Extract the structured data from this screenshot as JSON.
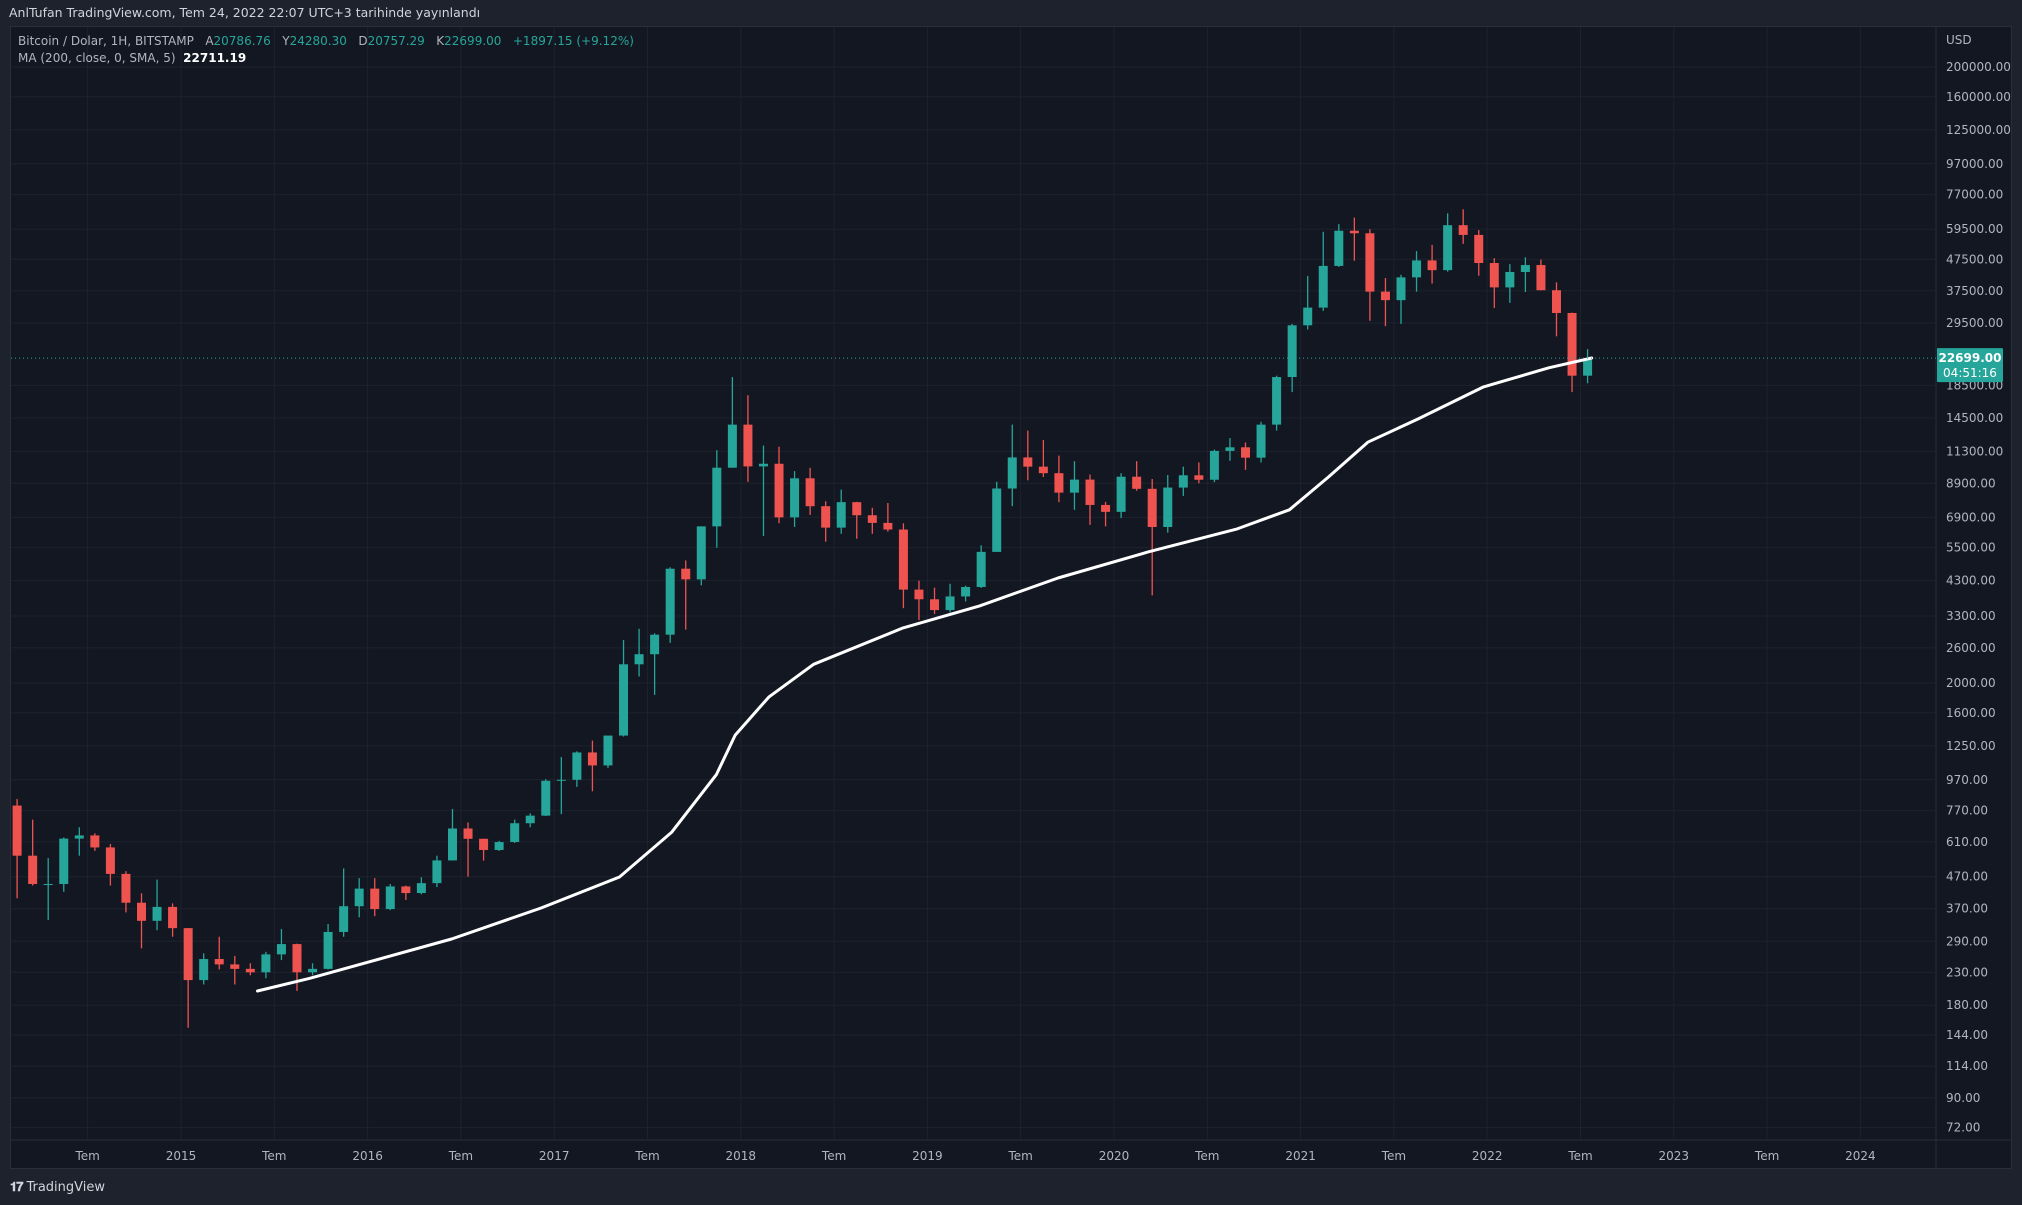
{
  "header": {
    "title": "AnlTufan TradingView.com, Tem 24, 2022 22:07 UTC+3 tarihinde yayınlandı"
  },
  "legend": {
    "symbol": "Bitcoin / Dolar, 1H, BITSTAMP",
    "open_label": "A",
    "open": "20786.76",
    "high_label": "Y",
    "high": "24280.30",
    "low_label": "D",
    "low": "20757.29",
    "close_label": "K",
    "close": "22699.00",
    "change": "+1897.15 (+9.12%)",
    "ma_label": "MA (200, close, 0, SMA, 5)",
    "ma_value": "22711.19"
  },
  "footer": {
    "brand": "TradingView",
    "logo_text": "TV"
  },
  "colors": {
    "up": "#26a69a",
    "down": "#ef5350",
    "ma": "#ffffff",
    "bg": "#131722",
    "grid": "#1e222d",
    "axis_text": "#b2b5be"
  },
  "chart_data": {
    "type": "candlestick",
    "title": "Bitcoin / Dolar, 1H, BITSTAMP",
    "currency_label": "USD",
    "yscale": "log",
    "ylim": [
      70,
      215000
    ],
    "xlim": [
      2014.08,
      2024.4
    ],
    "y_ticks": [
      "200000.00",
      "160000.00",
      "125000.00",
      "97000.00",
      "77000.00",
      "59500.00",
      "47500.00",
      "37500.00",
      "29500.00",
      "18500.00",
      "14500.00",
      "11300.00",
      "8900.00",
      "6900.00",
      "5500.00",
      "4300.00",
      "3300.00",
      "2600.00",
      "2000.00",
      "1600.00",
      "1250.00",
      "970.00",
      "770.00",
      "610.00",
      "470.00",
      "370.00",
      "290.00",
      "230.00",
      "180.00",
      "144.00",
      "114.00",
      "90.00",
      "72.00"
    ],
    "x_ticks": [
      {
        "t": 2014.5,
        "label": "Tem"
      },
      {
        "t": 2015,
        "label": "2015"
      },
      {
        "t": 2015.5,
        "label": "Tem"
      },
      {
        "t": 2016,
        "label": "2016"
      },
      {
        "t": 2016.5,
        "label": "Tem"
      },
      {
        "t": 2017,
        "label": "2017"
      },
      {
        "t": 2017.5,
        "label": "Tem"
      },
      {
        "t": 2018,
        "label": "2018"
      },
      {
        "t": 2018.5,
        "label": "Tem"
      },
      {
        "t": 2019,
        "label": "2019"
      },
      {
        "t": 2019.5,
        "label": "Tem"
      },
      {
        "t": 2020,
        "label": "2020"
      },
      {
        "t": 2020.5,
        "label": "Tem"
      },
      {
        "t": 2021,
        "label": "2021"
      },
      {
        "t": 2021.5,
        "label": "Tem"
      },
      {
        "t": 2022,
        "label": "2022"
      },
      {
        "t": 2022.5,
        "label": "Tem"
      },
      {
        "t": 2023,
        "label": "2023"
      },
      {
        "t": 2023.5,
        "label": "Tem"
      },
      {
        "t": 2024,
        "label": "2024"
      }
    ],
    "last_price": {
      "price": "22699.00",
      "countdown": "04:51:16",
      "value": 22699
    },
    "candles_start": 2014.08,
    "candle_period_years": 0.08333,
    "candles_ohlc": [
      [
        800,
        840,
        400,
        550
      ],
      [
        550,
        720,
        440,
        445
      ],
      [
        445,
        540,
        340,
        445
      ],
      [
        445,
        630,
        420,
        625
      ],
      [
        625,
        680,
        550,
        640
      ],
      [
        640,
        650,
        570,
        585
      ],
      [
        585,
        600,
        440,
        480
      ],
      [
        480,
        490,
        360,
        387
      ],
      [
        387,
        415,
        275,
        338
      ],
      [
        338,
        460,
        315,
        375
      ],
      [
        375,
        385,
        300,
        320
      ],
      [
        320,
        320,
        152,
        217
      ],
      [
        217,
        265,
        210,
        254
      ],
      [
        254,
        300,
        235,
        244
      ],
      [
        244,
        260,
        210,
        236
      ],
      [
        236,
        246,
        225,
        230
      ],
      [
        230,
        268,
        220,
        263
      ],
      [
        263,
        318,
        252,
        284
      ],
      [
        284,
        285,
        200,
        230
      ],
      [
        230,
        246,
        225,
        236
      ],
      [
        236,
        330,
        235,
        311
      ],
      [
        311,
        500,
        300,
        377
      ],
      [
        377,
        465,
        347,
        430
      ],
      [
        430,
        465,
        350,
        369
      ],
      [
        369,
        445,
        366,
        437
      ],
      [
        437,
        440,
        395,
        416
      ],
      [
        416,
        468,
        412,
        448
      ],
      [
        448,
        550,
        435,
        531
      ],
      [
        531,
        780,
        530,
        674
      ],
      [
        674,
        705,
        470,
        624
      ],
      [
        624,
        625,
        530,
        574
      ],
      [
        574,
        615,
        570,
        609
      ],
      [
        609,
        720,
        605,
        701
      ],
      [
        701,
        755,
        680,
        742
      ],
      [
        742,
        975,
        740,
        963
      ],
      [
        963,
        1150,
        750,
        970
      ],
      [
        970,
        1200,
        920,
        1190
      ],
      [
        1190,
        1300,
        890,
        1080
      ],
      [
        1080,
        1350,
        1060,
        1350
      ],
      [
        1350,
        2760,
        1340,
        2300
      ],
      [
        2300,
        3000,
        2100,
        2480
      ],
      [
        2480,
        2900,
        1830,
        2870
      ],
      [
        2870,
        4750,
        2700,
        4700
      ],
      [
        4700,
        5000,
        2980,
        4340
      ],
      [
        4340,
        6450,
        4150,
        6450
      ],
      [
        6450,
        11400,
        5500,
        10000
      ],
      [
        10000,
        19700,
        10000,
        13800
      ],
      [
        13800,
        17200,
        9000,
        10100
      ],
      [
        10100,
        11800,
        6000,
        10300
      ],
      [
        10300,
        11700,
        6600,
        6900
      ],
      [
        6900,
        9750,
        6420,
        9240
      ],
      [
        9240,
        9990,
        7030,
        7500
      ],
      [
        7500,
        7780,
        5750,
        6390
      ],
      [
        6390,
        8490,
        6100,
        7730
      ],
      [
        7730,
        7750,
        5880,
        7010
      ],
      [
        7010,
        7410,
        6100,
        6620
      ],
      [
        6620,
        7680,
        6200,
        6300
      ],
      [
        6300,
        6600,
        3500,
        4020
      ],
      [
        4020,
        4300,
        3200,
        3740
      ],
      [
        3740,
        4080,
        3350,
        3450
      ],
      [
        3450,
        4200,
        3390,
        3820
      ],
      [
        3820,
        4140,
        3680,
        4100
      ],
      [
        4100,
        5600,
        4070,
        5330
      ],
      [
        5330,
        9000,
        5330,
        8560
      ],
      [
        8560,
        13800,
        7500,
        10800
      ],
      [
        10800,
        13200,
        9100,
        10080
      ],
      [
        10080,
        12300,
        9330,
        9600
      ],
      [
        9600,
        10950,
        7730,
        8300
      ],
      [
        8300,
        10500,
        7300,
        9150
      ],
      [
        9150,
        9500,
        6520,
        7570
      ],
      [
        7570,
        7750,
        6450,
        7190
      ],
      [
        7190,
        9600,
        6860,
        9350
      ],
      [
        9350,
        10500,
        8420,
        8540
      ],
      [
        8540,
        9190,
        3850,
        6420
      ],
      [
        6420,
        9470,
        6150,
        8620
      ],
      [
        8620,
        10080,
        8100,
        9450
      ],
      [
        9450,
        10400,
        8900,
        9140
      ],
      [
        9140,
        11450,
        8980,
        11340
      ],
      [
        11340,
        12480,
        10530,
        11650
      ],
      [
        11650,
        12080,
        9840,
        10780
      ],
      [
        10780,
        14100,
        10400,
        13800
      ],
      [
        13800,
        19900,
        13200,
        19700
      ],
      [
        19700,
        29300,
        17600,
        29000
      ],
      [
        29000,
        41950,
        28100,
        33100
      ],
      [
        33100,
        58350,
        32300,
        45200
      ],
      [
        45200,
        61800,
        44900,
        58800
      ],
      [
        58800,
        64900,
        47000,
        57700
      ],
      [
        57700,
        59500,
        30000,
        37300
      ],
      [
        37300,
        41300,
        28800,
        35000
      ],
      [
        35000,
        42300,
        29300,
        41500
      ],
      [
        41500,
        50500,
        37300,
        47100
      ],
      [
        47100,
        52900,
        39600,
        43800
      ],
      [
        43800,
        67000,
        43300,
        61300
      ],
      [
        61300,
        69000,
        53300,
        57000
      ],
      [
        57000,
        59100,
        42000,
        46200
      ],
      [
        46200,
        47900,
        33000,
        38500
      ],
      [
        38500,
        45800,
        34300,
        43200
      ],
      [
        43200,
        48200,
        37200,
        45500
      ],
      [
        45500,
        47400,
        37700,
        37700
      ],
      [
        37700,
        40000,
        26700,
        31800
      ],
      [
        31800,
        31900,
        17600,
        19900
      ],
      [
        19900,
        24280,
        18800,
        22699
      ]
    ],
    "ma_series": {
      "name": "MA (200, close, 0, SMA, 5)",
      "points": [
        [
          2015.41,
          200
        ],
        [
          2015.69,
          220
        ],
        [
          2016.45,
          295
        ],
        [
          2016.93,
          372
        ],
        [
          2017.35,
          469
        ],
        [
          2017.63,
          656
        ],
        [
          2017.87,
          1010
        ],
        [
          2017.97,
          1355
        ],
        [
          2018.15,
          1800
        ],
        [
          2018.39,
          2300
        ],
        [
          2018.87,
          3020
        ],
        [
          2019.28,
          3560
        ],
        [
          2019.7,
          4385
        ],
        [
          2020.18,
          5320
        ],
        [
          2020.66,
          6330
        ],
        [
          2020.94,
          7300
        ],
        [
          2021.15,
          9340
        ],
        [
          2021.36,
          12100
        ],
        [
          2021.63,
          14400
        ],
        [
          2021.98,
          18300
        ],
        [
          2022.33,
          21100
        ],
        [
          2022.56,
          22711
        ]
      ]
    }
  }
}
